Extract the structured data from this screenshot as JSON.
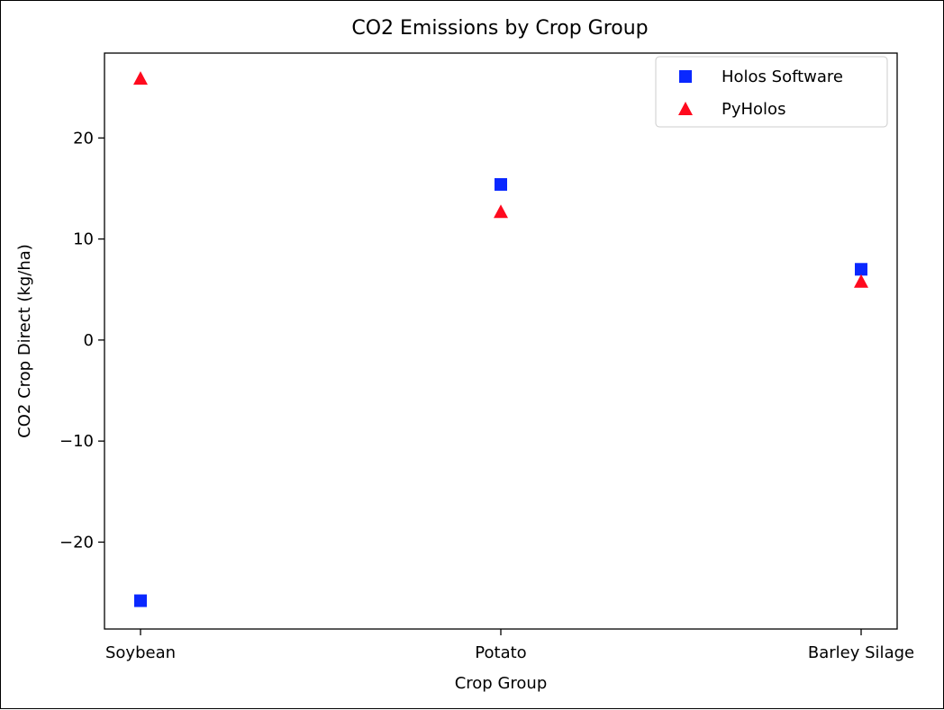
{
  "chart_data": {
    "type": "scatter",
    "title": "CO2 Emissions by Crop Group",
    "xlabel": "Crop Group",
    "ylabel": "CO2 Crop Direct (kg/ha)",
    "categories": [
      "Soybean",
      "Potato",
      "Barley Silage"
    ],
    "ylim": [
      -28.6,
      28.4
    ],
    "yticks": [
      20,
      10,
      0,
      -10,
      -20
    ],
    "ytick_labels": [
      "20",
      "10",
      "0",
      "−10",
      "−20"
    ],
    "grid": false,
    "legend_position": "top-right",
    "series": [
      {
        "name": "Holos Software",
        "marker": "square",
        "color": "#0a28ff",
        "values": [
          -25.8,
          15.4,
          7.0
        ]
      },
      {
        "name": "PyHolos",
        "marker": "triangle",
        "color": "#ff0a1e",
        "values": [
          25.9,
          12.7,
          5.8
        ]
      }
    ]
  }
}
